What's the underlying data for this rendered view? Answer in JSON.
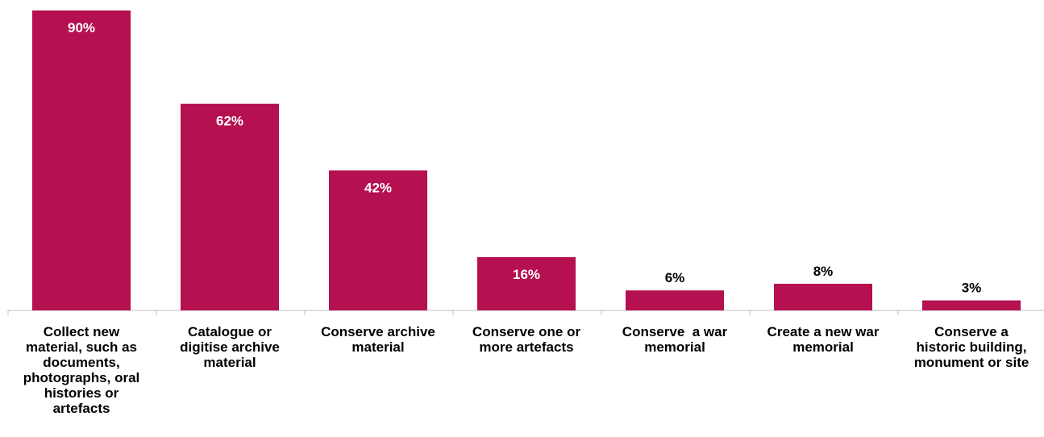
{
  "chart_data": {
    "type": "bar",
    "categories": [
      "Collect new material, such as documents, photographs, oral histories or artefacts",
      "Catalogue or digitise archive material",
      "Conserve archive material",
      "Conserve one or more artefacts",
      "Conserve  a war memorial",
      "Create a new war memorial",
      "Conserve a historic building, monument or site"
    ],
    "category_lines": [
      [
        "Collect new",
        "material, such as",
        "documents,",
        "photographs, oral",
        "histories or",
        "artefacts"
      ],
      [
        "Catalogue or",
        "digitise archive",
        "material"
      ],
      [
        "Conserve archive",
        "material"
      ],
      [
        "Conserve one or",
        "more artefacts"
      ],
      [
        "Conserve  a war",
        "memorial"
      ],
      [
        "Create a new war",
        "memorial"
      ],
      [
        "Conserve a",
        "historic building,",
        "monument or site"
      ]
    ],
    "values": [
      90,
      62,
      42,
      16,
      6,
      8,
      3
    ],
    "data_labels": [
      "90%",
      "62%",
      "42%",
      "16%",
      "6%",
      "8%",
      "3%"
    ],
    "unit": "%",
    "ylim": [
      0,
      90
    ],
    "grid": false,
    "legend": "none",
    "bar_color": "#B5104F",
    "inside_label_color": "#FFFFFF",
    "outside_label_color": "#000000",
    "axis_color": "#BFBFBF"
  }
}
